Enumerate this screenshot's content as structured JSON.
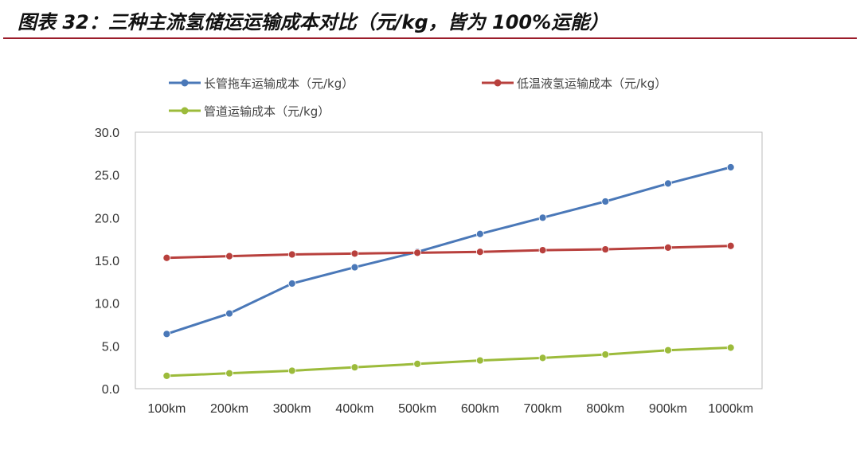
{
  "title": "图表 32：三种主流氢储运运输成本对比（元/kg，皆为 100%运能）",
  "chart_data": {
    "type": "line",
    "title": "图表 32：三种主流氢储运运输成本对比（元/kg，皆为 100%运能）",
    "categories": [
      "100km",
      "200km",
      "300km",
      "400km",
      "500km",
      "600km",
      "700km",
      "800km",
      "900km",
      "1000km"
    ],
    "series": [
      {
        "name": "长管拖车运输成本（元/kg）",
        "color": "#4a78b8",
        "values": [
          6.4,
          8.8,
          12.3,
          14.2,
          16.0,
          18.1,
          20.0,
          21.9,
          24.0,
          25.9
        ]
      },
      {
        "name": "低温液氢运输成本（元/kg）",
        "color": "#b8403d",
        "values": [
          15.3,
          15.5,
          15.7,
          15.8,
          15.9,
          16.0,
          16.2,
          16.3,
          16.5,
          16.7
        ]
      },
      {
        "name": "管道运输成本（元/kg）",
        "color": "#9cbb3b",
        "values": [
          1.5,
          1.8,
          2.1,
          2.5,
          2.9,
          3.3,
          3.6,
          4.0,
          4.5,
          4.8
        ]
      }
    ],
    "ylim": [
      0,
      30
    ],
    "yticks": [
      "0.0",
      "5.0",
      "10.0",
      "15.0",
      "20.0",
      "25.0",
      "30.0"
    ],
    "xlabel": "",
    "ylabel": "",
    "grid": false,
    "legend": "top"
  }
}
